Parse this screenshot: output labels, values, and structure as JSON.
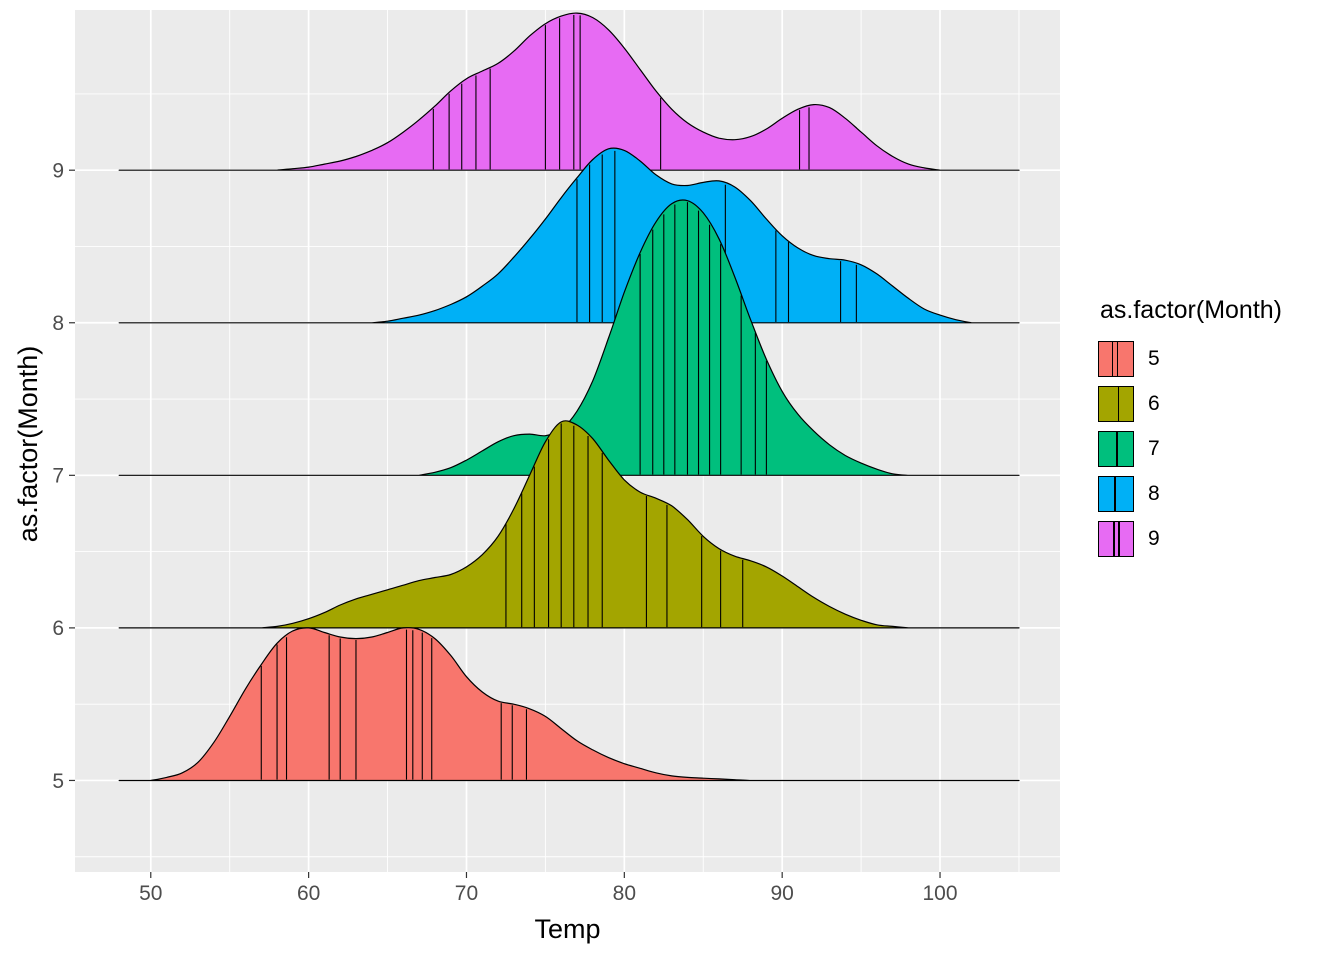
{
  "figure": {
    "background": "#FFFFFF"
  },
  "panel": {
    "background": "#EBEBEB",
    "grid_major_color": "#FFFFFF",
    "grid_minor_color": "#FFFFFF",
    "tick_color": "#333333",
    "tick_label_color": "#4D4D4D"
  },
  "x_axis": {
    "label": "Temp",
    "tick_labels": [
      "50",
      "60",
      "70",
      "80",
      "90",
      "100"
    ],
    "tick_values": [
      50,
      60,
      70,
      80,
      90,
      100
    ],
    "minor_ticks": [
      45,
      55,
      65,
      75,
      85,
      95,
      105
    ]
  },
  "y_axis": {
    "label": "as.factor(Month)",
    "tick_labels": [
      "5",
      "6",
      "7",
      "8",
      "9"
    ],
    "tick_values": [
      5,
      6,
      7,
      8,
      9
    ],
    "minor_ticks": [
      4.5,
      5.5,
      6.5,
      7.5,
      8.5,
      9.5
    ]
  },
  "legend": {
    "title": "as.factor(Month)",
    "position": "right",
    "items": [
      {
        "label": "5",
        "color": "#F8766D",
        "key_lines": [
          0.38,
          0.52
        ]
      },
      {
        "label": "6",
        "color": "#A3A500",
        "key_lines": [
          0.55
        ]
      },
      {
        "label": "7",
        "color": "#00BF7D",
        "key_lines": [
          0.5
        ]
      },
      {
        "label": "8",
        "color": "#00B0F6",
        "key_lines": [
          0.45
        ]
      },
      {
        "label": "9",
        "color": "#E76BF3",
        "key_lines": [
          0.42,
          0.56
        ]
      }
    ]
  },
  "chart_data": {
    "type": "area",
    "subtype": "ridgeline-density",
    "title": "",
    "xlabel": "Temp",
    "ylabel": "as.factor(Month)",
    "x_range": [
      45.2,
      107.6
    ],
    "y_range": [
      4.4,
      10.05
    ],
    "baseline_extent": [
      48,
      105
    ],
    "height_units": "y-axis units above each month baseline",
    "grid": true,
    "legend_position": "right",
    "draw_order": [
      "9",
      "8",
      "7",
      "6",
      "5"
    ],
    "series": [
      {
        "month": "5",
        "baseline": 5,
        "color": "#F8766D",
        "density": {
          "x": [
            50,
            51,
            52,
            53,
            54,
            55,
            56,
            57,
            58,
            59,
            60,
            61,
            62,
            63,
            64,
            65,
            66,
            67,
            68,
            69,
            70,
            71,
            72,
            73,
            74,
            75,
            76,
            77,
            78,
            79,
            80,
            81,
            82,
            83,
            84,
            85,
            86,
            87,
            88
          ],
          "height": [
            0,
            0.02,
            0.05,
            0.12,
            0.25,
            0.42,
            0.6,
            0.76,
            0.9,
            0.98,
            1.0,
            0.97,
            0.94,
            0.93,
            0.94,
            0.97,
            1.0,
            0.99,
            0.93,
            0.82,
            0.68,
            0.58,
            0.52,
            0.5,
            0.47,
            0.42,
            0.34,
            0.26,
            0.2,
            0.15,
            0.11,
            0.08,
            0.05,
            0.03,
            0.02,
            0.015,
            0.01,
            0.005,
            0
          ]
        },
        "points": [
          57,
          58,
          58.6,
          61.3,
          62,
          63,
          66.2,
          66.6,
          67.2,
          67.8,
          72.2,
          72.9,
          73.8
        ]
      },
      {
        "month": "6",
        "baseline": 6,
        "color": "#A3A500",
        "density": {
          "x": [
            57,
            58,
            59,
            60,
            61,
            62,
            63,
            64,
            65,
            66,
            67,
            68,
            69,
            70,
            71,
            72,
            73,
            74,
            75,
            76,
            77,
            78,
            79,
            80,
            81,
            82,
            83,
            84,
            85,
            86,
            87,
            88,
            89,
            90,
            91,
            92,
            93,
            94,
            95,
            96,
            97,
            98
          ],
          "height": [
            0,
            0.01,
            0.03,
            0.06,
            0.1,
            0.15,
            0.19,
            0.22,
            0.25,
            0.28,
            0.31,
            0.33,
            0.35,
            0.4,
            0.48,
            0.6,
            0.78,
            1.0,
            1.22,
            1.35,
            1.33,
            1.24,
            1.1,
            0.97,
            0.89,
            0.85,
            0.8,
            0.71,
            0.6,
            0.52,
            0.47,
            0.44,
            0.4,
            0.34,
            0.27,
            0.2,
            0.14,
            0.09,
            0.05,
            0.02,
            0.01,
            0
          ]
        },
        "points": [
          72.5,
          73.5,
          74.3,
          75.2,
          76,
          76.8,
          77.7,
          78.6,
          81.4,
          82.7,
          84.9,
          86.1,
          87.5
        ]
      },
      {
        "month": "7",
        "baseline": 7,
        "color": "#00BF7D",
        "density": {
          "x": [
            67,
            68,
            69,
            70,
            71,
            72,
            73,
            74,
            75,
            76,
            77,
            78,
            79,
            80,
            81,
            82,
            83,
            84,
            85,
            86,
            87,
            88,
            89,
            90,
            91,
            92,
            93,
            94,
            95,
            96,
            97,
            98
          ],
          "height": [
            0,
            0.02,
            0.05,
            0.1,
            0.16,
            0.22,
            0.26,
            0.27,
            0.26,
            0.3,
            0.42,
            0.62,
            0.9,
            1.2,
            1.46,
            1.66,
            1.78,
            1.8,
            1.72,
            1.55,
            1.3,
            1.02,
            0.76,
            0.55,
            0.4,
            0.29,
            0.2,
            0.13,
            0.08,
            0.04,
            0.01,
            0
          ]
        },
        "points": [
          81,
          81.8,
          82.5,
          83.2,
          84,
          84.7,
          85.4,
          86.1,
          87.4,
          88.3,
          89
        ]
      },
      {
        "month": "8",
        "baseline": 8,
        "color": "#00B0F6",
        "density": {
          "x": [
            64,
            65,
            66,
            67,
            68,
            69,
            70,
            71,
            72,
            73,
            74,
            75,
            76,
            77,
            78,
            79,
            80,
            81,
            82,
            83,
            84,
            85,
            86,
            87,
            88,
            89,
            90,
            91,
            92,
            93,
            94,
            95,
            96,
            97,
            98,
            99,
            100,
            101,
            102
          ],
          "height": [
            0,
            0.01,
            0.03,
            0.05,
            0.08,
            0.12,
            0.17,
            0.24,
            0.32,
            0.43,
            0.55,
            0.68,
            0.82,
            0.95,
            1.07,
            1.14,
            1.13,
            1.06,
            0.97,
            0.91,
            0.9,
            0.92,
            0.93,
            0.89,
            0.8,
            0.68,
            0.57,
            0.49,
            0.44,
            0.42,
            0.41,
            0.38,
            0.32,
            0.24,
            0.16,
            0.09,
            0.05,
            0.02,
            0
          ]
        },
        "points": [
          77,
          77.8,
          78.6,
          79.4,
          86.4,
          89.6,
          90.4,
          93.7,
          94.7
        ]
      },
      {
        "month": "9",
        "baseline": 9,
        "color": "#E76BF3",
        "density": {
          "x": [
            58,
            59,
            60,
            61,
            62,
            63,
            64,
            65,
            66,
            67,
            68,
            69,
            70,
            71,
            72,
            73,
            74,
            75,
            76,
            77,
            78,
            79,
            80,
            81,
            82,
            83,
            84,
            85,
            86,
            87,
            88,
            89,
            90,
            91,
            92,
            93,
            94,
            95,
            96,
            97,
            98,
            99,
            100
          ],
          "height": [
            0,
            0.01,
            0.02,
            0.04,
            0.06,
            0.09,
            0.13,
            0.18,
            0.25,
            0.33,
            0.42,
            0.52,
            0.6,
            0.65,
            0.7,
            0.78,
            0.88,
            0.96,
            1.01,
            1.03,
            1.0,
            0.92,
            0.8,
            0.66,
            0.52,
            0.4,
            0.31,
            0.25,
            0.21,
            0.2,
            0.22,
            0.27,
            0.34,
            0.4,
            0.43,
            0.41,
            0.34,
            0.25,
            0.16,
            0.09,
            0.04,
            0.015,
            0
          ]
        },
        "points": [
          67.9,
          68.9,
          69.7,
          70.6,
          71.5,
          75,
          75.9,
          76.8,
          77.2,
          82.3,
          91.1,
          91.7
        ]
      }
    ]
  }
}
